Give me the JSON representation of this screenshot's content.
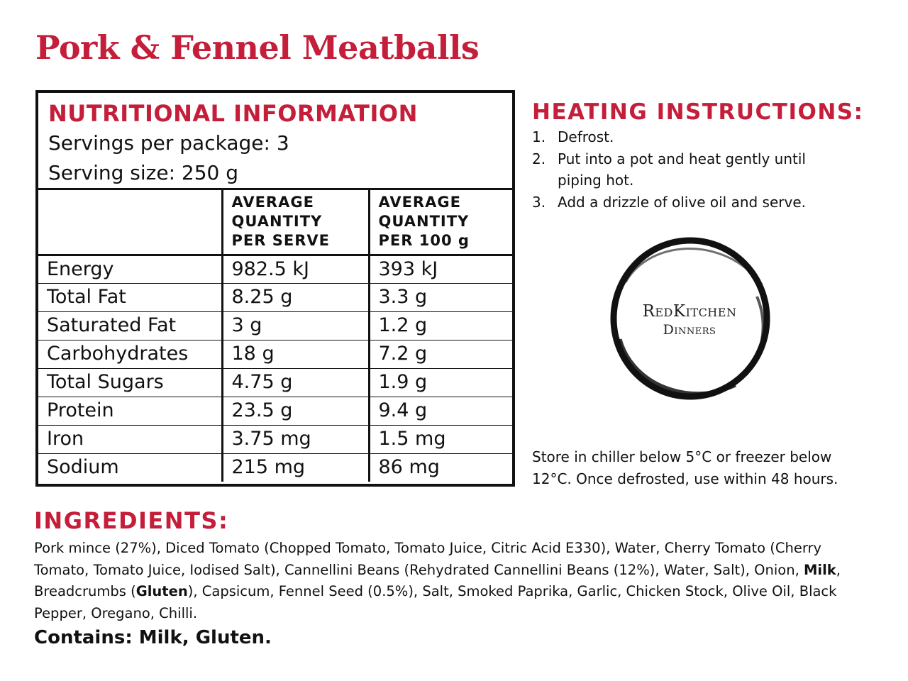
{
  "title": "Pork & Fennel Meatballs",
  "nutrition": {
    "heading": "NUTRITIONAL INFORMATION",
    "servings_per_package": "Servings per package: 3",
    "serving_size": "Serving size: 250 g",
    "columns": [
      {
        "line1": "",
        "line2": "",
        "line3": ""
      },
      {
        "line1": "AVERAGE",
        "line2": "QUANTITY",
        "line3": "PER SERVE"
      },
      {
        "line1": "AVERAGE",
        "line2": "QUANTITY",
        "line3": "PER 100 g"
      }
    ],
    "rows": [
      {
        "name": "Energy",
        "per_serve": "982.5 kJ",
        "per_100g": "393 kJ"
      },
      {
        "name": "Total Fat",
        "per_serve": "8.25 g",
        "per_100g": "3.3 g"
      },
      {
        "name": "Saturated Fat",
        "per_serve": "3 g",
        "per_100g": "1.2 g"
      },
      {
        "name": "Carbohydrates",
        "per_serve": "18 g",
        "per_100g": "7.2 g"
      },
      {
        "name": "Total Sugars",
        "per_serve": "4.75 g",
        "per_100g": "1.9 g"
      },
      {
        "name": "Protein",
        "per_serve": "23.5 g",
        "per_100g": "9.4 g"
      },
      {
        "name": "Iron",
        "per_serve": "3.75 mg",
        "per_100g": "1.5 mg"
      },
      {
        "name": "Sodium",
        "per_serve": "215 mg",
        "per_100g": "86 mg"
      }
    ]
  },
  "heating": {
    "heading": "HEATING INSTRUCTIONS:",
    "steps": [
      {
        "num": "1.",
        "text": "Defrost."
      },
      {
        "num": "2.",
        "text": "Put into a pot and heat gently until piping hot."
      },
      {
        "num": "3.",
        "text": "Add a drizzle of olive oil and serve."
      }
    ]
  },
  "logo": {
    "line1": "RedKitchen",
    "line2": "Dinners"
  },
  "storage": {
    "line1": "Store in chiller below 5°C or freezer below",
    "line2": "12°C. Once defrosted, use within 48 hours."
  },
  "ingredients": {
    "heading": "INGREDIENTS:",
    "part1": "Pork mince (27%), Diced Tomato (Chopped Tomato, Tomato Juice, Citric Acid E330), Water, Cherry Tomato (Cherry Tomato, Tomato Juice, Iodised Salt), Cannellini Beans (Rehydrated Cannellini Beans (12%), Water, Salt), Onion, ",
    "allergen1": "Milk",
    "part2": ", Breadcrumbs (",
    "allergen2": "Gluten",
    "part3": "), Capsicum, Fennel Seed (0.5%), Salt, Smoked Paprika, Garlic, Chicken Stock, Olive Oil, Black Pepper, Oregano, Chilli."
  },
  "contains": "Contains: Milk, Gluten.",
  "colors": {
    "accent": "#c41e3a",
    "text": "#111111"
  }
}
